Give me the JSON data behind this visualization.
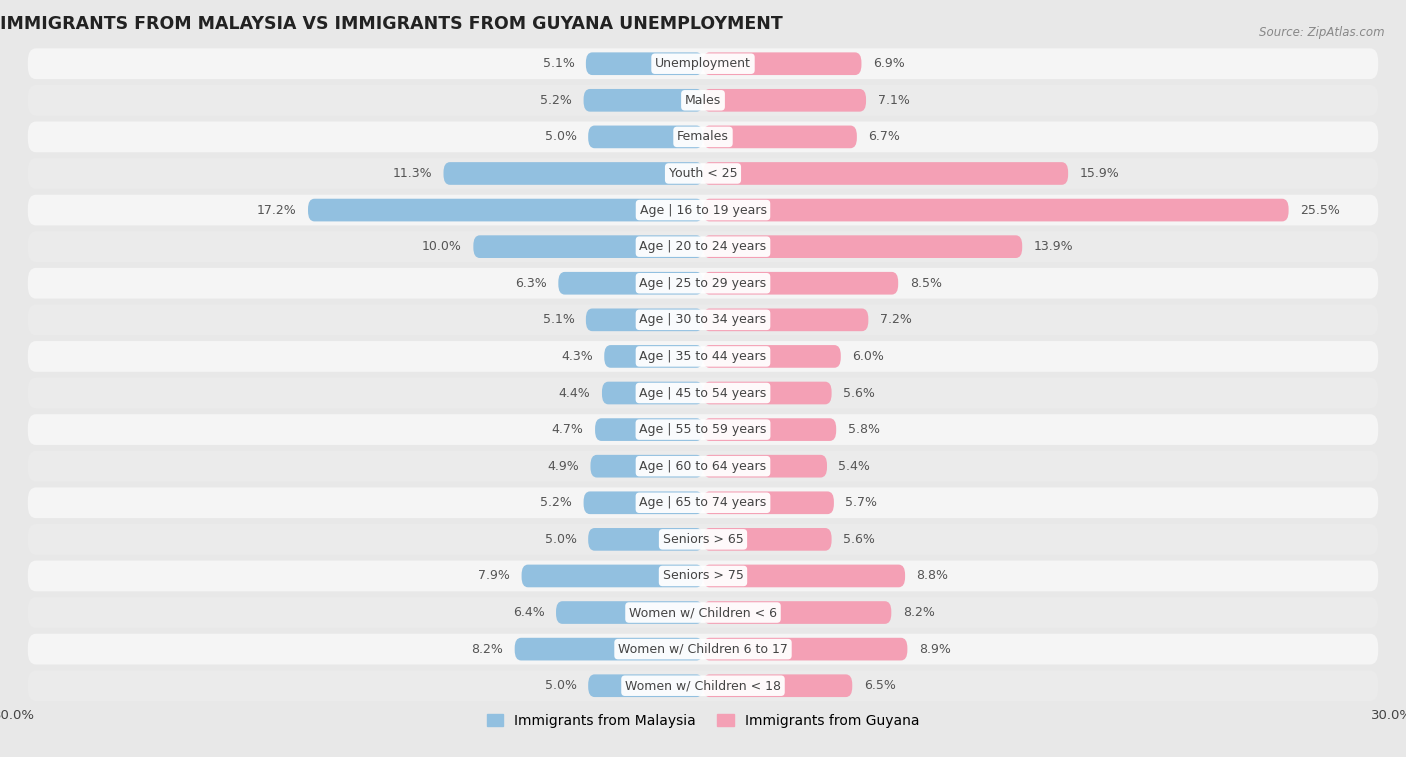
{
  "title": "IMMIGRANTS FROM MALAYSIA VS IMMIGRANTS FROM GUYANA UNEMPLOYMENT",
  "source": "Source: ZipAtlas.com",
  "categories": [
    "Unemployment",
    "Males",
    "Females",
    "Youth < 25",
    "Age | 16 to 19 years",
    "Age | 20 to 24 years",
    "Age | 25 to 29 years",
    "Age | 30 to 34 years",
    "Age | 35 to 44 years",
    "Age | 45 to 54 years",
    "Age | 55 to 59 years",
    "Age | 60 to 64 years",
    "Age | 65 to 74 years",
    "Seniors > 65",
    "Seniors > 75",
    "Women w/ Children < 6",
    "Women w/ Children 6 to 17",
    "Women w/ Children < 18"
  ],
  "malaysia_values": [
    5.1,
    5.2,
    5.0,
    11.3,
    17.2,
    10.0,
    6.3,
    5.1,
    4.3,
    4.4,
    4.7,
    4.9,
    5.2,
    5.0,
    7.9,
    6.4,
    8.2,
    5.0
  ],
  "guyana_values": [
    6.9,
    7.1,
    6.7,
    15.9,
    25.5,
    13.9,
    8.5,
    7.2,
    6.0,
    5.6,
    5.8,
    5.4,
    5.7,
    5.6,
    8.8,
    8.2,
    8.9,
    6.5
  ],
  "malaysia_color": "#92c0e0",
  "guyana_color": "#f4a0b5",
  "background_color": "#e8e8e8",
  "row_bg_color": "#ebebeb",
  "row_alt_color": "#f5f5f5",
  "xlim": 30.0,
  "bar_height": 0.62,
  "label_fontsize": 9.0,
  "title_fontsize": 12.5,
  "legend_label_malaysia": "Immigrants from Malaysia",
  "legend_label_guyana": "Immigrants from Guyana"
}
